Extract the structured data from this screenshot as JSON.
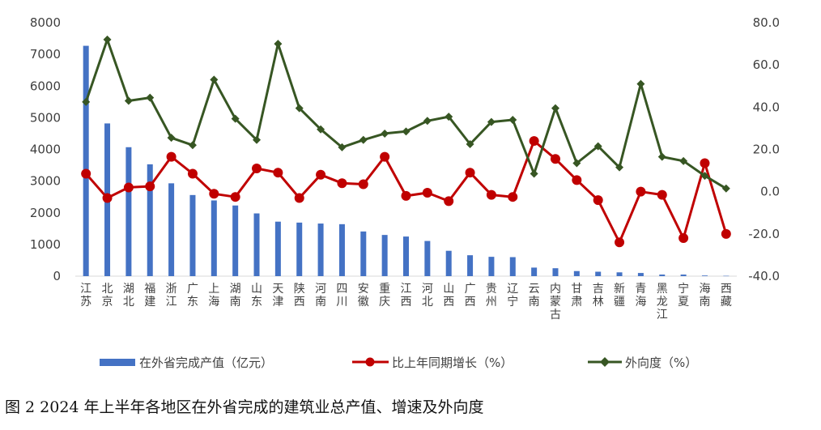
{
  "chart_data": {
    "type": "bar+line",
    "caption": "图 2 2024 年上半年各地区在外省完成的建筑业总产值、增速及外向度",
    "categories": [
      "江苏",
      "北京",
      "湖北",
      "福建",
      "浙江",
      "广东",
      "上海",
      "湖南",
      "山东",
      "天津",
      "陕西",
      "河南",
      "四川",
      "安徽",
      "重庆",
      "江西",
      "河北",
      "山西",
      "广西",
      "贵州",
      "辽宁",
      "云南",
      "内蒙古",
      "甘肃",
      "吉林",
      "新疆",
      "青海",
      "黑龙江",
      "宁夏",
      "海南",
      "西藏"
    ],
    "y_left": {
      "min": 0,
      "max": 8000,
      "step": 1000,
      "ticks": [
        "0",
        "1000",
        "2000",
        "3000",
        "4000",
        "5000",
        "6000",
        "7000",
        "8000"
      ]
    },
    "y_right": {
      "min": -40,
      "max": 80,
      "step": 20,
      "ticks": [
        "-40.0",
        "-20.0",
        "0.0",
        "20.0",
        "40.0",
        "60.0",
        "80.0"
      ]
    },
    "series": [
      {
        "name": "在外省完成产值（亿元）",
        "type": "bar",
        "axis": "left",
        "color": "#4472C4",
        "values": [
          7270,
          4820,
          4070,
          3530,
          2930,
          2560,
          2390,
          2230,
          1980,
          1720,
          1690,
          1660,
          1640,
          1410,
          1300,
          1250,
          1110,
          800,
          660,
          610,
          600,
          270,
          250,
          160,
          140,
          120,
          100,
          50,
          50,
          20,
          10
        ]
      },
      {
        "name": "比上年同期增长（%）",
        "type": "line",
        "axis": "right",
        "color": "#C00000",
        "marker": "circle",
        "values": [
          8.5,
          -3.0,
          2.0,
          2.5,
          16.5,
          8.5,
          -1.0,
          -2.5,
          11.0,
          9.0,
          -3.0,
          8.0,
          4.0,
          3.5,
          16.5,
          -2.0,
          -0.5,
          -4.5,
          9.0,
          -1.5,
          -2.5,
          24.0,
          15.5,
          5.5,
          -4.0,
          -24.0,
          0.0,
          -1.5,
          -22.0,
          13.5,
          -20.0
        ]
      },
      {
        "name": "外向度（%）",
        "type": "line",
        "axis": "right",
        "color": "#375623",
        "marker": "diamond",
        "values": [
          42.5,
          72.0,
          43.0,
          44.5,
          25.5,
          22.0,
          53.0,
          34.5,
          24.5,
          70.0,
          39.5,
          29.5,
          21.0,
          24.5,
          27.5,
          28.5,
          33.5,
          35.5,
          22.5,
          33.0,
          34.0,
          8.5,
          39.5,
          13.5,
          21.5,
          11.5,
          51.0,
          16.5,
          14.5,
          7.5,
          1.5
        ]
      }
    ],
    "grid": false,
    "legend_position": "bottom"
  }
}
